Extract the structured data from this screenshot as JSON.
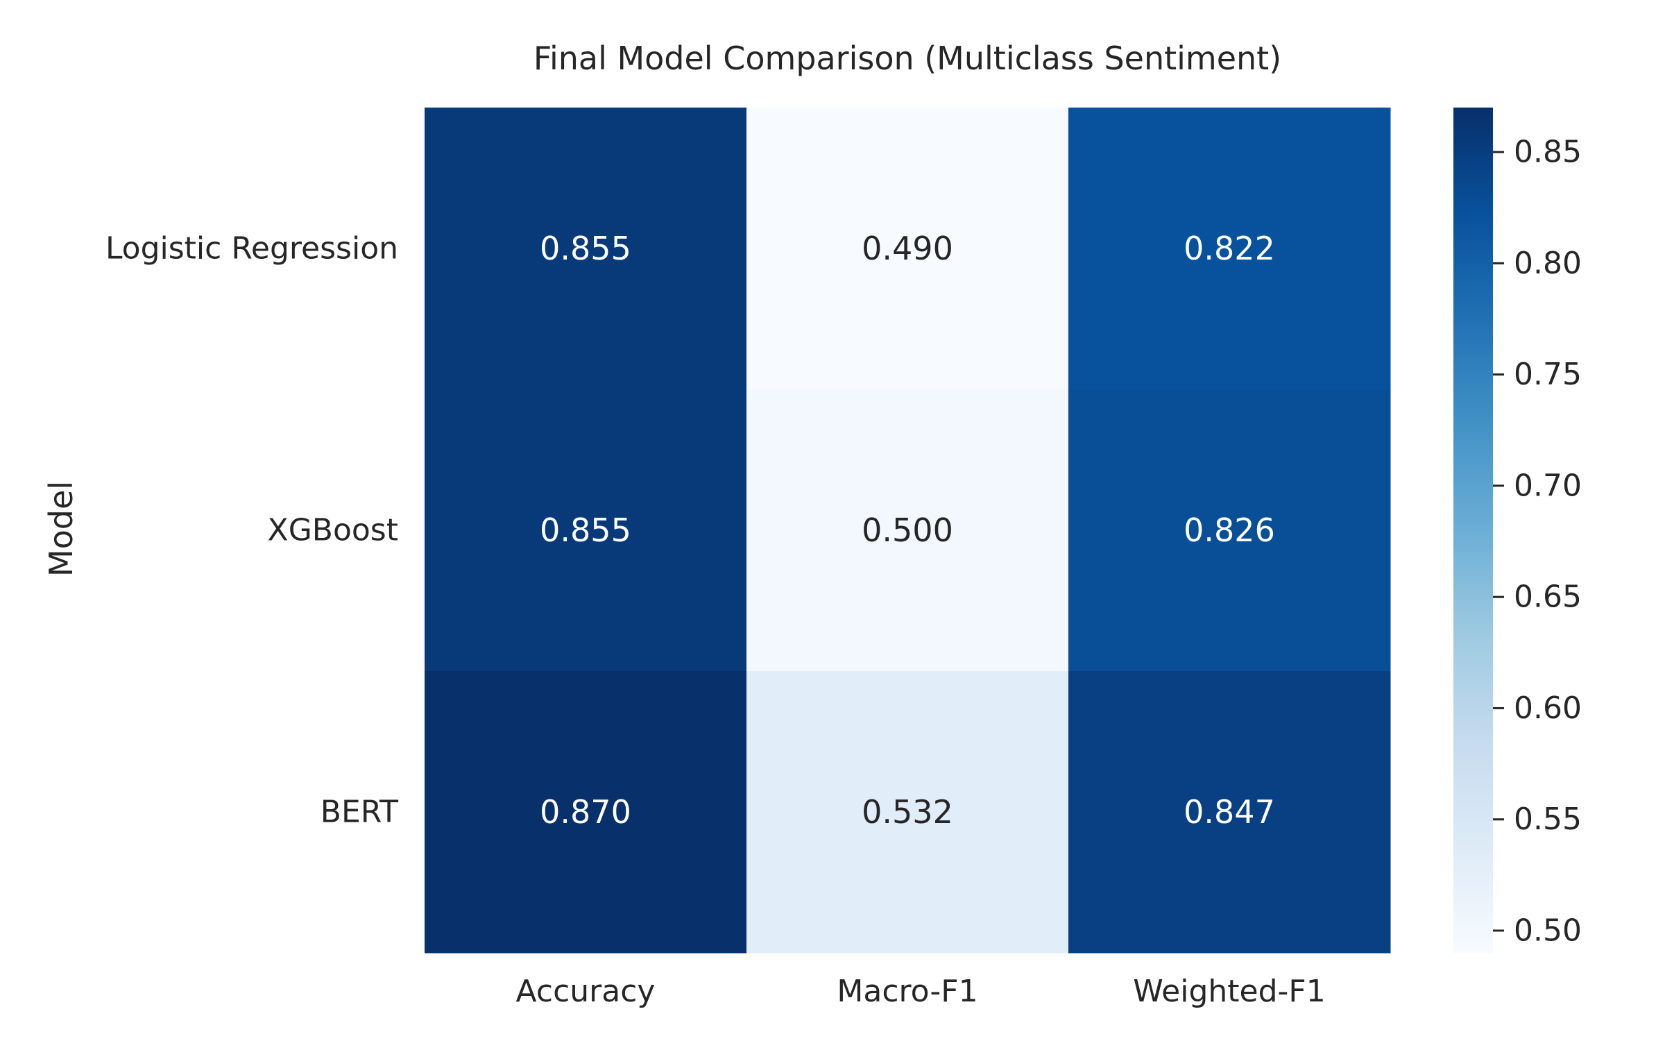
{
  "chart_data": {
    "type": "heatmap",
    "title": "Final Model Comparison (Multiclass Sentiment)",
    "xlabel": "",
    "ylabel": "Model",
    "x_categories": [
      "Accuracy",
      "Macro-F1",
      "Weighted-F1"
    ],
    "y_categories": [
      "Logistic Regression",
      "XGBoost",
      "BERT"
    ],
    "values": [
      [
        0.855,
        0.49,
        0.822
      ],
      [
        0.855,
        0.5,
        0.826
      ],
      [
        0.87,
        0.532,
        0.847
      ]
    ],
    "value_format_decimals": 3,
    "colormap": "Blues",
    "colormap_stops": [
      "#f7fbff",
      "#deebf7",
      "#c6dbef",
      "#9ecae1",
      "#6baed6",
      "#4292c6",
      "#2171b5",
      "#08519c",
      "#08306b"
    ],
    "colorbar": {
      "vmin": 0.49,
      "vmax": 0.87,
      "ticks": [
        0.5,
        0.55,
        0.6,
        0.65,
        0.7,
        0.75,
        0.8,
        0.85
      ],
      "tick_labels": [
        "0.50",
        "0.55",
        "0.60",
        "0.65",
        "0.70",
        "0.75",
        "0.80",
        "0.85"
      ]
    },
    "grid": false,
    "legend": "none"
  }
}
